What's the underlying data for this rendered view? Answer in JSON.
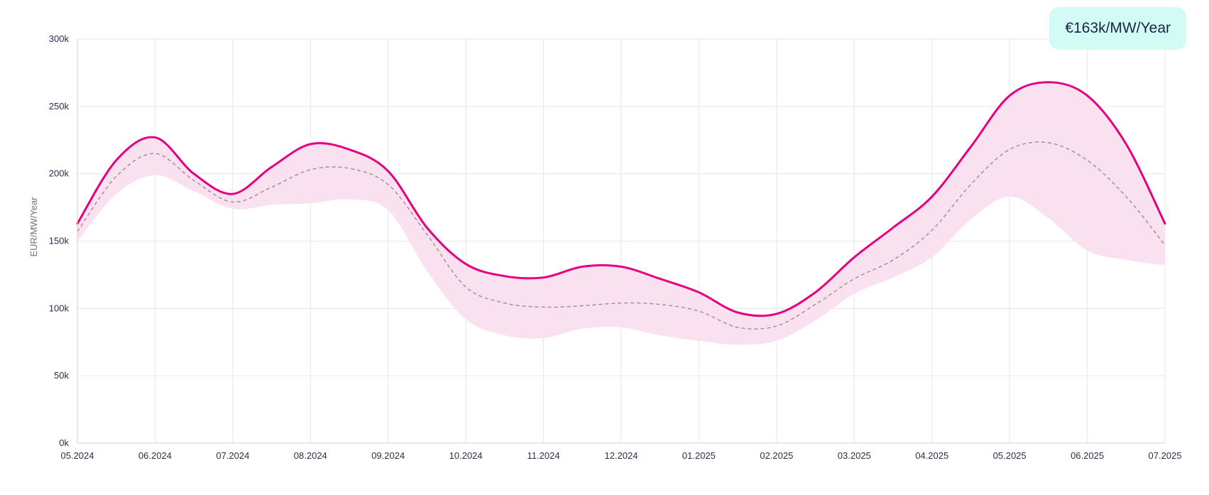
{
  "badge": {
    "value": "€163k/MW/Year"
  },
  "chart_data": {
    "type": "area",
    "ylabel": "EUR/MW/Year",
    "xlabel": "",
    "ylim": [
      0,
      300000
    ],
    "yticks": [
      0,
      50000,
      100000,
      150000,
      200000,
      250000,
      300000
    ],
    "ytick_labels": [
      "0k",
      "50k",
      "100k",
      "150k",
      "200k",
      "250k",
      "300k"
    ],
    "xtick_labels": [
      "05.2024",
      "06.2024",
      "07.2024",
      "08.2024",
      "09.2024",
      "10.2024",
      "11.2024",
      "12.2024",
      "01.2025",
      "02.2025",
      "03.2025",
      "04.2025",
      "05.2025",
      "06.2025",
      "07.2025"
    ],
    "grid": true,
    "colors": {
      "upper_line": "#e6007e",
      "band_fill": "#f9e1ef",
      "median_line": "#a08a96",
      "grid": "#e6e6ea",
      "axis": "#d0d0d8"
    },
    "x": [
      0,
      0.5,
      1,
      1.5,
      2,
      2.5,
      3,
      3.5,
      4,
      4.5,
      5,
      5.5,
      6,
      6.5,
      7,
      7.5,
      8,
      8.5,
      9,
      9.5,
      10,
      10.5,
      11,
      11.5,
      12,
      12.5,
      13,
      13.5,
      14
    ],
    "series": [
      {
        "role": "upper",
        "style": "solid",
        "values": [
          163000,
          210000,
          227000,
          200000,
          185000,
          205000,
          222000,
          218000,
          202000,
          160000,
          133000,
          124000,
          123000,
          131000,
          131000,
          122000,
          112000,
          97000,
          96000,
          112000,
          138000,
          160000,
          183000,
          220000,
          258000,
          268000,
          258000,
          222000,
          163000
        ]
      },
      {
        "role": "median",
        "style": "dashed",
        "values": [
          157000,
          198000,
          215000,
          195000,
          179000,
          190000,
          203000,
          204000,
          192000,
          155000,
          116000,
          104000,
          101000,
          102000,
          104000,
          103000,
          98000,
          86000,
          87000,
          103000,
          122000,
          136000,
          158000,
          192000,
          218000,
          223000,
          210000,
          183000,
          147000
        ]
      },
      {
        "role": "lower",
        "style": "band-bottom",
        "values": [
          150000,
          185000,
          199000,
          187000,
          174000,
          177000,
          178000,
          181000,
          173000,
          128000,
          92000,
          80000,
          78000,
          85000,
          86000,
          80000,
          76000,
          73000,
          76000,
          91000,
          111000,
          123000,
          138000,
          166000,
          183000,
          167000,
          143000,
          136000,
          132000
        ]
      }
    ]
  }
}
